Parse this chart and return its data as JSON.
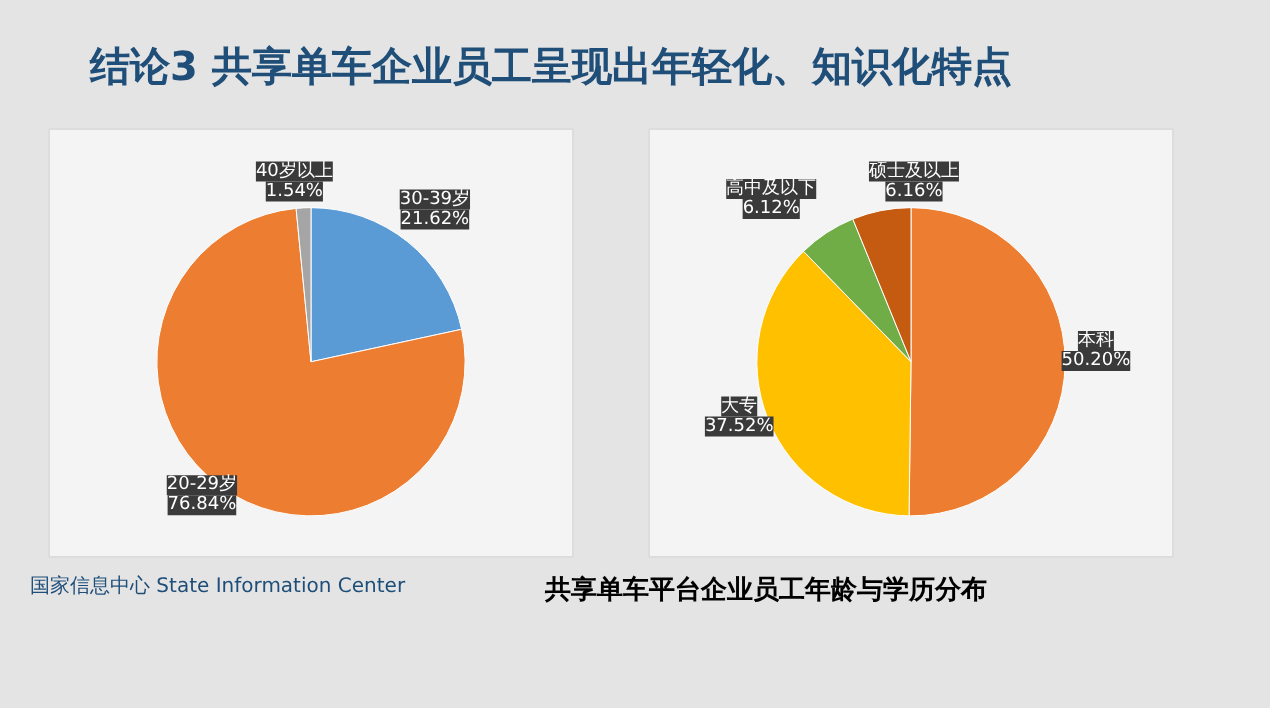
{
  "chart_data": [
    {
      "type": "pie",
      "title": "结论3  共享单车企业员工呈现出年轻化、知识化特点",
      "categories": [
        "30-39岁",
        "20-29岁",
        "40岁以上"
      ],
      "values": [
        21.62,
        76.84,
        1.54
      ],
      "colors": [
        "#5b9bd5",
        "#ed7d31",
        "#a5a5a5"
      ],
      "value_labels": [
        "21.62%",
        "76.84%",
        "1.54%"
      ]
    },
    {
      "type": "pie",
      "categories": [
        "本科",
        "大专",
        "高中及以下",
        "硕士及以上"
      ],
      "values": [
        50.2,
        37.52,
        6.12,
        6.16
      ],
      "colors": [
        "#ed7d31",
        "#ffc000",
        "#70ad47",
        "#c55a11"
      ],
      "value_labels": [
        "50.20%",
        "37.52%",
        "6.12%",
        "6.16%"
      ],
      "annotations": [
        "共享单车平台企业员工年龄与学历分布",
        "国家信息中心 State Information Center"
      ]
    }
  ]
}
